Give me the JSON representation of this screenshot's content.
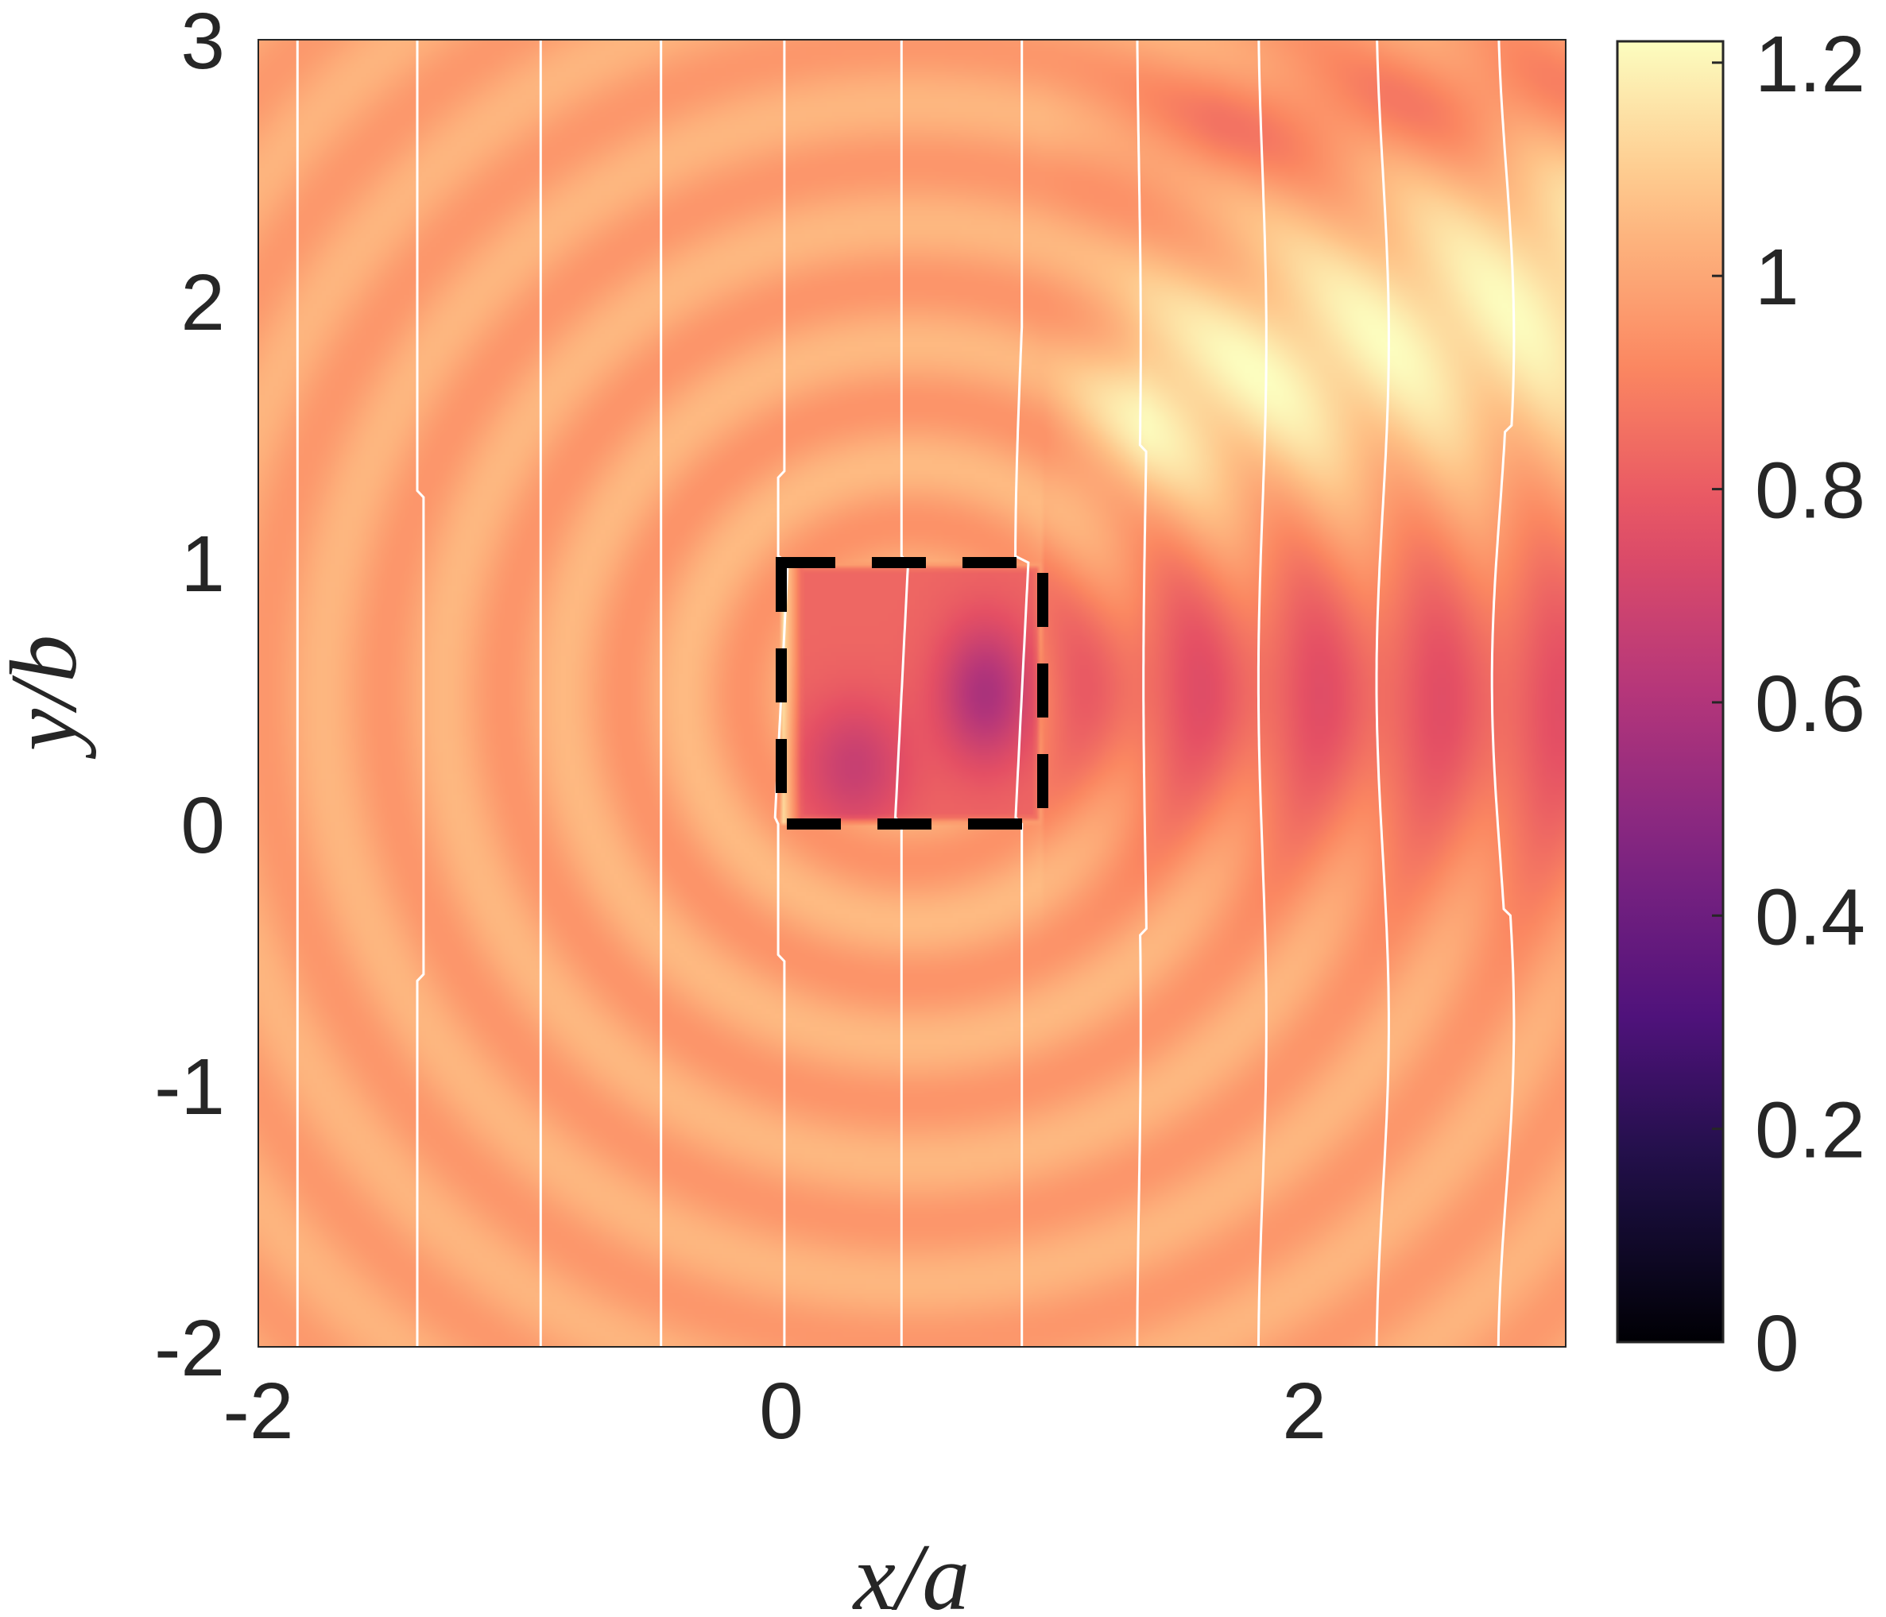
{
  "chart_data": {
    "type": "heatmap",
    "title": "",
    "xlabel": "x/a",
    "ylabel": "y/b",
    "xlim": [
      -2,
      3
    ],
    "ylim": [
      -2,
      3
    ],
    "xticks": [
      -2,
      0,
      2
    ],
    "xtick_labels": [
      "-2",
      "0",
      "2"
    ],
    "yticks": [
      -2,
      -1,
      0,
      1,
      2,
      3
    ],
    "ytick_labels": [
      "-2",
      "-1",
      "0",
      "1",
      "2",
      "3"
    ],
    "colormap": "magma",
    "clim": [
      0,
      1.22
    ],
    "colorbar": {
      "ticks": [
        0,
        0.2,
        0.4,
        0.6,
        0.8,
        1,
        1.2
      ],
      "tick_labels": [
        "0",
        "0.2",
        "0.4",
        "0.6",
        "0.8",
        "1",
        "1.2"
      ]
    },
    "field": {
      "background": 1.0,
      "ripple_amplitude": 0.06,
      "beam_peak": 1.2,
      "shadow_min": 0.8,
      "inclusion_min": 0.58
    },
    "inclusion_box": {
      "x": [
        0,
        1
      ],
      "y": [
        0,
        1
      ],
      "style": "dashed",
      "color": "#000000"
    },
    "contour_lines": {
      "color": "#ffffff",
      "x_positions": [
        -1.85,
        -1.38,
        -0.92,
        -0.46,
        0.0,
        0.46,
        0.92,
        1.38,
        1.84,
        2.3,
        2.76
      ]
    }
  }
}
